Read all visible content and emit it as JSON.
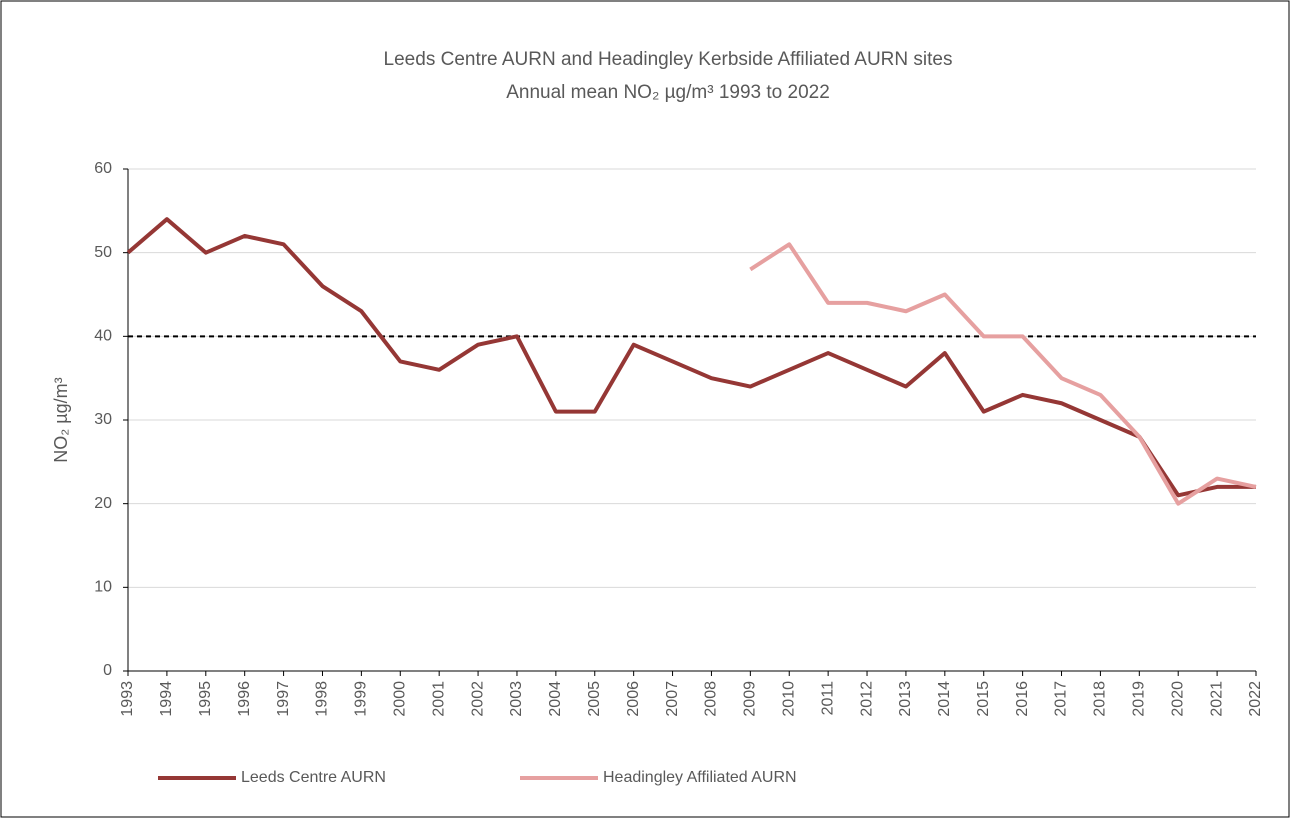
{
  "chart_data": {
    "type": "line",
    "title": "Leeds Centre AURN and Headingley Kerbside Affiliated AURN sites",
    "subtitle": "Annual mean  NO₂ µg/m³  1993 to 2022",
    "y_label": "NO₂ µg/m³",
    "categories": [
      "1993",
      "1994",
      "1995",
      "1996",
      "1997",
      "1998",
      "1999",
      "2000",
      "2001",
      "2002",
      "2003",
      "2004",
      "2005",
      "2006",
      "2007",
      "2008",
      "2009",
      "2010",
      "2011",
      "2012",
      "2013",
      "2014",
      "2015",
      "2016",
      "2017",
      "2018",
      "2019",
      "2020",
      "2021",
      "2022"
    ],
    "series": [
      {
        "name": "Leeds Centre AURN",
        "color": "#953735",
        "values": [
          50,
          54,
          50,
          52,
          51,
          46,
          43,
          37,
          36,
          39,
          40,
          31,
          31,
          39,
          37,
          35,
          34,
          36,
          38,
          36,
          34,
          38,
          31,
          33,
          32,
          30,
          28,
          21,
          22,
          22
        ]
      },
      {
        "name": "Headingley Affiliated AURN",
        "color": "#e6a0a0",
        "values": [
          null,
          null,
          null,
          null,
          null,
          null,
          null,
          null,
          null,
          null,
          null,
          null,
          null,
          null,
          null,
          null,
          48,
          51,
          44,
          44,
          43,
          45,
          40,
          40,
          35,
          33,
          28,
          20,
          23,
          22
        ]
      }
    ],
    "reference_line": 40,
    "ylim": [
      0,
      60
    ],
    "yticks": [
      0,
      10,
      20,
      30,
      40,
      50,
      60
    ],
    "grid": true,
    "legend": "bottom"
  }
}
